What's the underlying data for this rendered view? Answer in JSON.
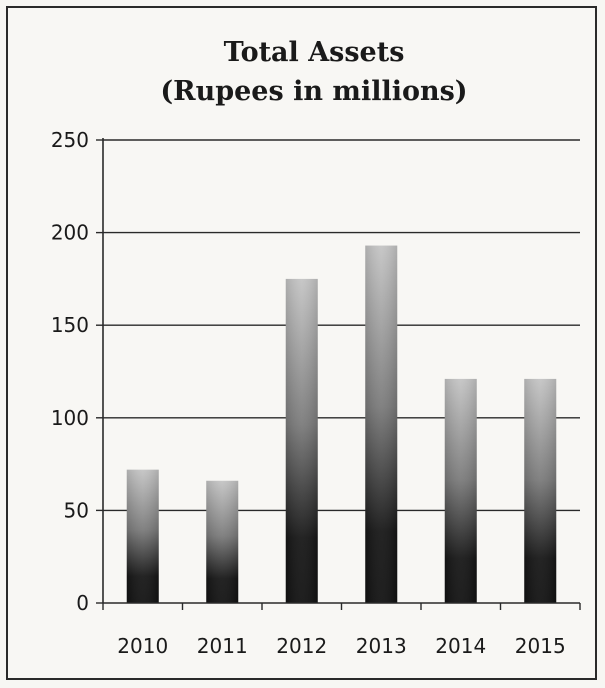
{
  "chart_data": {
    "type": "bar",
    "title": "Total Assets",
    "subtitle": "(Rupees in millions)",
    "xlabel": "",
    "ylabel": "",
    "categories": [
      "2010",
      "2011",
      "2012",
      "2013",
      "2014",
      "2015"
    ],
    "values": [
      72,
      66,
      175,
      193,
      121,
      121
    ],
    "ylim": [
      0,
      250
    ],
    "yticks": [
      0,
      50,
      100,
      150,
      200,
      250
    ],
    "grid": true,
    "legend": "none",
    "colors": {
      "bar_top": "#c4c4c4",
      "bar_bottom": "#161616",
      "grid": "#2a2a2a",
      "text": "#1a1a1a"
    }
  }
}
